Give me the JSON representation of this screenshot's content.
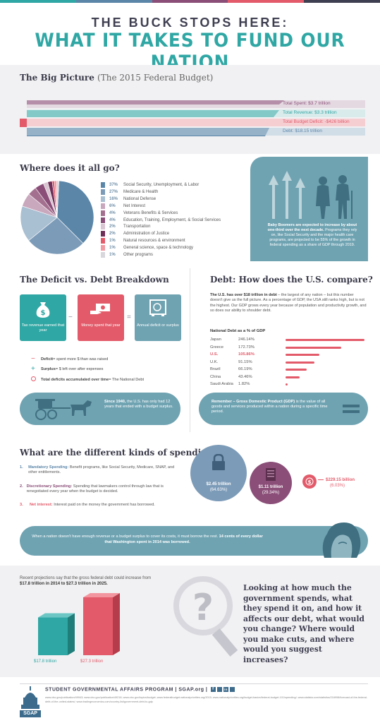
{
  "colors": {
    "teal": "#2fa7a4",
    "navy": "#3f3f52",
    "steel": "#5b86a8",
    "panel_blue": "#6fa3b2",
    "red": "#e35b6a",
    "plum": "#8b4e78",
    "light_gray": "#f1f1f3"
  },
  "header": {
    "line1": "THE BUCK STOPS HERE:",
    "line2": "WHAT IT TAKES TO FUND OUR NATION"
  },
  "big_picture": {
    "title": "The Big Picture",
    "subtitle": "(The 2015 Federal Budget)",
    "bars": [
      {
        "label": "Total Spent: $3.7 trillion",
        "color": "#8b4e78",
        "text_color": "#8b4e78"
      },
      {
        "label": "Total Revenue: $3.3 trillion",
        "color": "#2fa7a4",
        "text_color": "#2fa7a4"
      },
      {
        "label": "Total Budget Deficit: -$426 billion",
        "color": "#e35b6a",
        "text_color": "#e35b6a"
      },
      {
        "label": "Debt: $18.15 trillion",
        "color": "#5b86a8",
        "text_color": "#5b86a8"
      }
    ]
  },
  "where": {
    "title": "Where does it all go?",
    "legend": [
      {
        "pct": "37%",
        "label": "Social Security, Unemployment, & Labor",
        "color": "#5b86a8",
        "value": 37
      },
      {
        "pct": "27%",
        "label": "Medicare & Health",
        "color": "#7c9bb8",
        "value": 27
      },
      {
        "pct": "16%",
        "label": "National Defense",
        "color": "#a9bfd2",
        "value": 16
      },
      {
        "pct": "6%",
        "label": "Net Interest",
        "color": "#c9a7bd",
        "value": 6
      },
      {
        "pct": "4%",
        "label": "Veterans Benefits & Services",
        "color": "#a4708f",
        "value": 4
      },
      {
        "pct": "4%",
        "label": "Education, Training, Employment, & Social Services",
        "color": "#8b4e78",
        "value": 4
      },
      {
        "pct": "2%",
        "label": "Transportation",
        "color": "#d9c4d1",
        "value": 2
      },
      {
        "pct": "2%",
        "label": "Administration of Justice",
        "color": "#6f2f58",
        "value": 2
      },
      {
        "pct": "1%",
        "label": "Natural resources & environment",
        "color": "#e35b6a",
        "value": 1
      },
      {
        "pct": "1%",
        "label": "General science, space & technology",
        "color": "#f09aa3",
        "value": 1
      },
      {
        "pct": "1%",
        "label": "Other programs",
        "color": "#d7d7dc",
        "value": 1
      }
    ],
    "boomer_bold": "Baby Boomers are expected to increase by about one-third over the next decade.",
    "boomer_text": "Programs they rely on, like Social Security and the major health care programs, are projected to be 55% of the growth in federal spending as a share of GDP through 2019."
  },
  "deficit": {
    "title": "The Deficit vs. Debt Breakdown",
    "box1": "Tax revenue earned that year",
    "box2": "Money spent that year",
    "box3": "Annual deficit or surplus",
    "minus": "−",
    "equals": "=",
    "key1_bold": "Deficit",
    "key1_text": " = spent more $ than was raised",
    "key2_bold": "Surplus",
    "key2_text": " = $ left over after expenses",
    "key3_bold": "Total deficits accumulated over time",
    "key3_text": " = The National Debt",
    "buggy_bold": "Since 1940,",
    "buggy_text": " the U.S. has only had 12 years that ended with a budget surplus."
  },
  "debt": {
    "title": "Debt: How does the U.S. compare?",
    "para_bold": "The U.S. has over $18 trillion in debt",
    "para_text": " – the largest of any nation – but this number doesn't give us the full picture. As a percentage of GDP, the USA still ranks high, but is not the highest. Our GDP grows every year because of population and productivity growth, and so does our ability to shoulder debt.",
    "chart_title": "National Debt as a % of GDP",
    "gdp_bold": "Remember – Gross Domestic Product (GDP)",
    "gdp_text": " is the value of all goods and services produced within a nation during a specific time period."
  },
  "chart_data": {
    "type": "bar",
    "title": "National Debt as a % of GDP",
    "categories": [
      "Japan",
      "Greece",
      "U.S.",
      "U.K.",
      "Brazil",
      "China",
      "Saudi Arabia"
    ],
    "labels": [
      "246.14%",
      "172.73%",
      "105.86%",
      "91.15%",
      "66.19%",
      "43.46%",
      "1.82%"
    ],
    "values": [
      246.14,
      172.73,
      105.86,
      91.15,
      66.19,
      43.46,
      1.82
    ],
    "highlight": "U.S."
  },
  "spending": {
    "title": "What are the different kinds of spending?",
    "items": [
      {
        "num": "1.",
        "bold": "Mandatory Spending:",
        "text": " Benefit programs, like Social Security, Medicare, SNAP, and other entitlements.",
        "color": "#5b86a8"
      },
      {
        "num": "2.",
        "bold": "Discretionary Spending:",
        "text": " Spending that lawmakers control through law that is renegotiated every year when the budget is decided.",
        "color": "#8b4e78"
      },
      {
        "num": "3.",
        "bold": "Net interest:",
        "text": " Interest paid on the money the government has borrowed.",
        "color": "#e35b6a"
      }
    ],
    "c1_val": "$2.45 trillion",
    "c1_pct": "(64.63%)",
    "c2_val": "$1.11 trillion",
    "c2_pct": "(29.34%)",
    "c3_val": "$229.15 billion",
    "c3_pct": "(6.03%)",
    "cents_text": "When a nation doesn't have enough revenue or a budget surplus to cover its costs, it must borrow the rest. ",
    "cents_bold": "14 cents of every dollar that Washington spent in 2014 was borrowed."
  },
  "projection": {
    "text": "Recent projections say that the gross federal debt could increase from ",
    "bold": "$17.8 trillion in 2014 to $27.3 trillion in 2025.",
    "col1": "$17.8 trillion",
    "col2": "$27.3 trillion",
    "question": "Looking at how much the government spends, what they spend it on, and how it affects our debt, what would you change? Where would you make cuts, and where would you suggest increases?"
  },
  "projection_chart": {
    "type": "bar",
    "categories": [
      "2014",
      "2025"
    ],
    "values": [
      17.8,
      27.3
    ]
  },
  "footer": {
    "title": "STUDENT GOVERNMENTAL AFFAIRS PROGRAM | SGAP.org |",
    "logo": "SGAP",
    "cites": "www.cbo.gov/publication/49943; www.cbo.gov/publication/49218; www.cbo.gov/topics/budget; www.federalbudget.nationalpriorities.org/2015; www.nationalpriorities.org/budget-basics/federal-budget-101/spending/; www.statista.com/statistics/216998/forecast-of-the-federal-debt-of-the-united-states/; www.tradingeconomics.com/country-list/government-debt-to-gdp"
  }
}
